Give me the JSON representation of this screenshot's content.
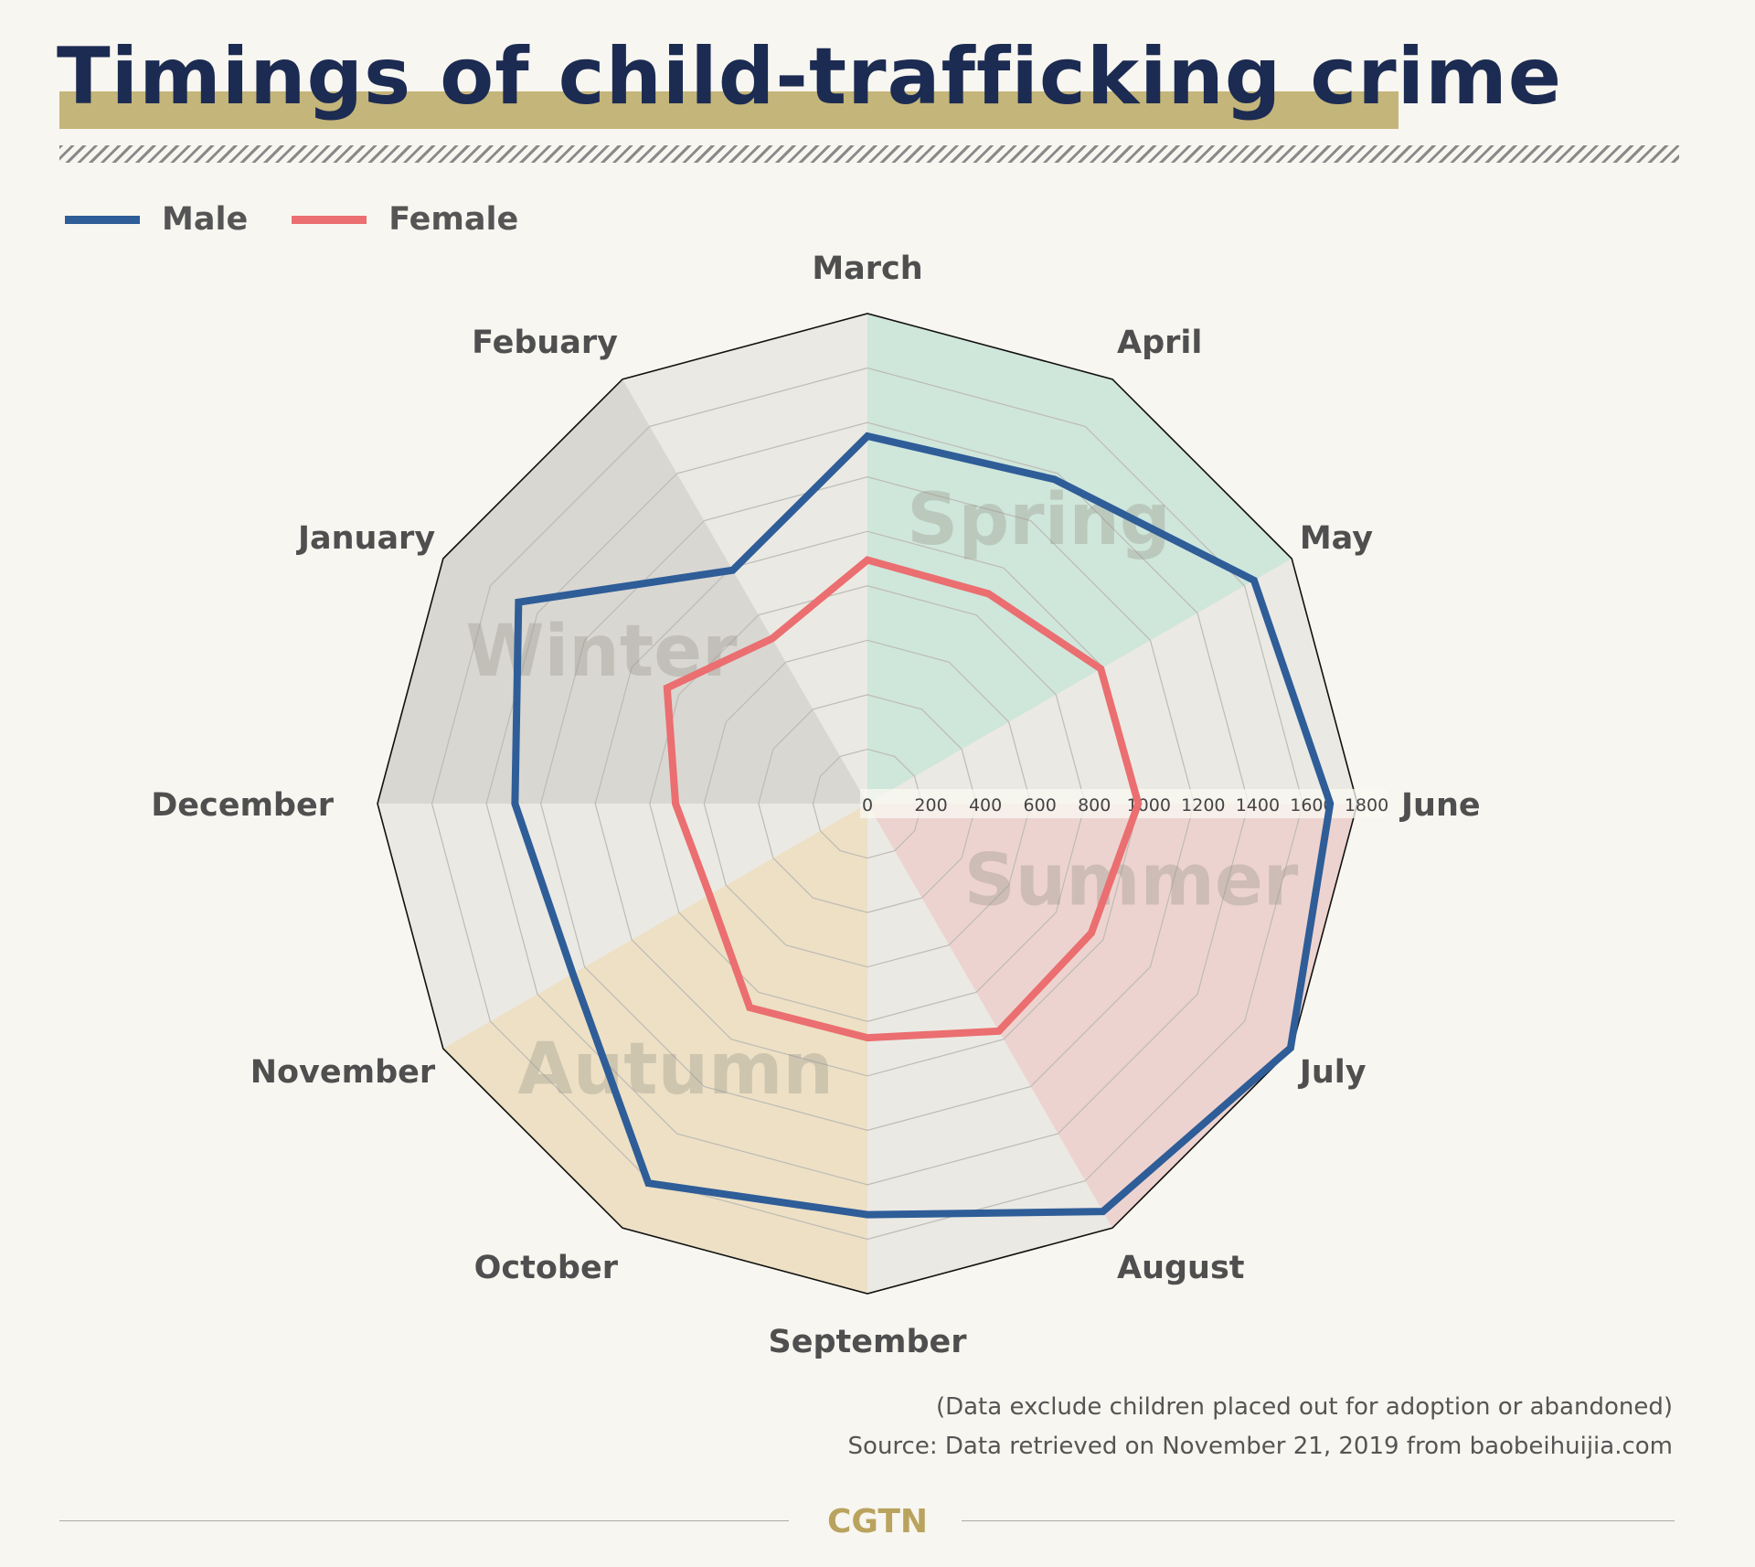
{
  "title": "Timings of child-trafficking crime",
  "legend": [
    {
      "label": "Male",
      "color": "#2e5d98"
    },
    {
      "label": "Female",
      "color": "#eb6e70"
    }
  ],
  "chart_data": {
    "type": "radar",
    "title": "Timings of child-trafficking crime",
    "categories": [
      "January",
      "Febuary",
      "March",
      "April",
      "May",
      "June",
      "July",
      "August",
      "September",
      "October",
      "November",
      "December"
    ],
    "series": [
      {
        "name": "Male",
        "values": [
          1480,
          990,
          1350,
          1375,
          1640,
          1700,
          1795,
          1730,
          1510,
          1610,
          1250,
          1295
        ],
        "color": "#2e5d98"
      },
      {
        "name": "Female",
        "values": [
          850,
          700,
          895,
          890,
          990,
          995,
          950,
          965,
          860,
          865,
          670,
          705
        ],
        "color": "#eb6e70"
      }
    ],
    "rlim": [
      0,
      1800
    ],
    "ticks": [
      "0",
      "200",
      "400",
      "600",
      "800",
      "1000",
      "1200",
      "1400",
      "1600",
      "1800"
    ],
    "tick_values": [
      0,
      200,
      400,
      600,
      800,
      1000,
      1200,
      1400,
      1600,
      1800
    ],
    "seasons": [
      {
        "label": "Winter",
        "months": [
          "December",
          "January",
          "Febuary"
        ],
        "color": "#d9d7d2"
      },
      {
        "label": "Spring",
        "months": [
          "March",
          "April",
          "May"
        ],
        "color": "#cfe6db"
      },
      {
        "label": "Summer",
        "months": [
          "June",
          "July",
          "August"
        ],
        "color": "#edd3cf"
      },
      {
        "label": "Autumn",
        "months": [
          "September",
          "October",
          "November"
        ],
        "color": "#ede0c5"
      }
    ],
    "grid": true,
    "legend_position": "top-left"
  },
  "notes": {
    "disclaimer": "(Data exclude children placed out for adoption or abandoned)",
    "source": "Source: Data retrieved on November 21, 2019 from baobeihuijia.com"
  },
  "footer": {
    "logo": "CGTN"
  }
}
